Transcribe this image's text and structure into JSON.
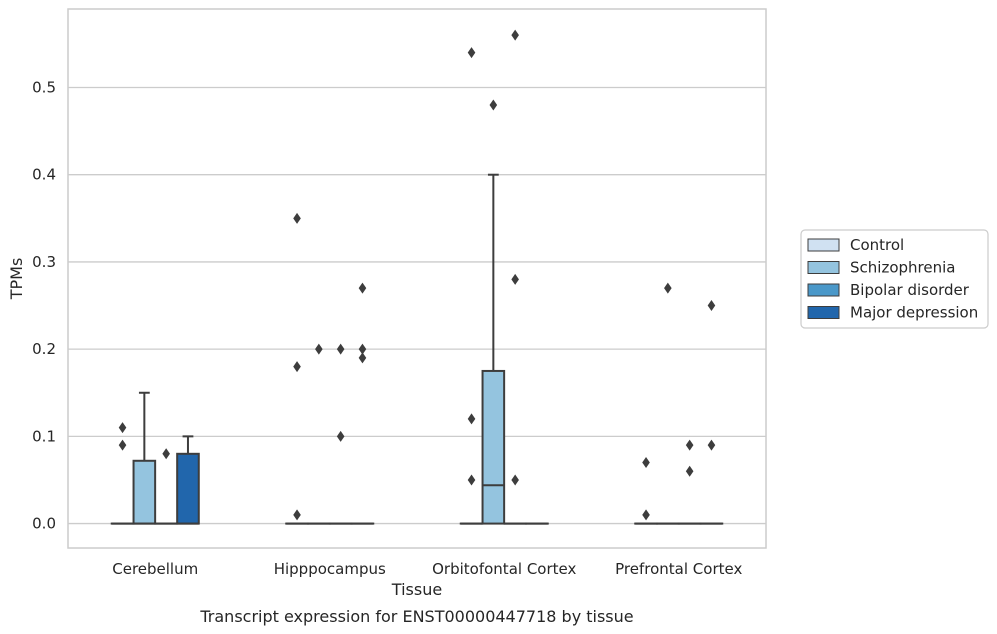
{
  "chart_data": {
    "type": "box",
    "title": "",
    "caption": "Transcript expression for ENST00000447718 by tissue",
    "xlabel": "Tissue",
    "ylabel": "TPMs",
    "ylim": [
      -0.028,
      0.59
    ],
    "yticks": [
      0.0,
      0.1,
      0.2,
      0.3,
      0.4,
      0.5
    ],
    "ytick_labels": [
      "0.0",
      "0.1",
      "0.2",
      "0.3",
      "0.4",
      "0.5"
    ],
    "grid": "horizontal",
    "legend_position": "right",
    "categories": [
      "Cerebellum",
      "Hipppocampus",
      "Orbitofontal Cortex",
      "Prefrontal Cortex"
    ],
    "series": [
      {
        "name": "Control",
        "color": "#d0e1f2",
        "boxes": [
          {
            "q1": 0,
            "median": 0,
            "q3": 0,
            "whisker_low": 0,
            "whisker_high": 0,
            "outliers": [
              0.09,
              0.11
            ]
          },
          {
            "q1": 0,
            "median": 0,
            "q3": 0,
            "whisker_low": 0,
            "whisker_high": 0,
            "outliers": [
              0.01,
              0.18,
              0.35
            ]
          },
          {
            "q1": 0,
            "median": 0,
            "q3": 0,
            "whisker_low": 0,
            "whisker_high": 0,
            "outliers": [
              0.05,
              0.12,
              0.54
            ]
          },
          {
            "q1": 0,
            "median": 0,
            "q3": 0,
            "whisker_low": 0,
            "whisker_high": 0,
            "outliers": [
              0.01,
              0.07
            ]
          }
        ]
      },
      {
        "name": "Schizophrenia",
        "color": "#94c4df",
        "boxes": [
          {
            "q1": 0,
            "median": 0,
            "q3": 0.072,
            "whisker_low": 0,
            "whisker_high": 0.15,
            "outliers": []
          },
          {
            "q1": 0,
            "median": 0,
            "q3": 0,
            "whisker_low": 0,
            "whisker_high": 0,
            "outliers": [
              0.2
            ]
          },
          {
            "q1": 0,
            "median": 0.044,
            "q3": 0.175,
            "whisker_low": 0,
            "whisker_high": 0.4,
            "outliers": [
              0.48
            ]
          },
          {
            "q1": 0,
            "median": 0,
            "q3": 0,
            "whisker_low": 0,
            "whisker_high": 0,
            "outliers": [
              0.27
            ]
          }
        ]
      },
      {
        "name": "Bipolar disorder",
        "color": "#4a98c9",
        "boxes": [
          {
            "q1": 0,
            "median": 0,
            "q3": 0,
            "whisker_low": 0,
            "whisker_high": 0,
            "outliers": [
              0.08
            ]
          },
          {
            "q1": 0,
            "median": 0,
            "q3": 0,
            "whisker_low": 0,
            "whisker_high": 0,
            "outliers": [
              0.1,
              0.2
            ]
          },
          {
            "q1": 0,
            "median": 0,
            "q3": 0,
            "whisker_low": 0,
            "whisker_high": 0,
            "outliers": [
              0.05,
              0.28,
              0.56
            ]
          },
          {
            "q1": 0,
            "median": 0,
            "q3": 0,
            "whisker_low": 0,
            "whisker_high": 0,
            "outliers": [
              0.06,
              0.09
            ]
          }
        ]
      },
      {
        "name": "Major depression",
        "color": "#2166ac",
        "boxes": [
          {
            "q1": 0,
            "median": 0,
            "q3": 0.08,
            "whisker_low": 0,
            "whisker_high": 0.1,
            "outliers": []
          },
          {
            "q1": 0,
            "median": 0,
            "q3": 0,
            "whisker_low": 0,
            "whisker_high": 0,
            "outliers": [
              0.19,
              0.2,
              0.27
            ]
          },
          {
            "q1": 0,
            "median": 0,
            "q3": 0,
            "whisker_low": 0,
            "whisker_high": 0,
            "outliers": []
          },
          {
            "q1": 0,
            "median": 0,
            "q3": 0,
            "whisker_low": 0,
            "whisker_high": 0,
            "outliers": [
              0.09,
              0.25
            ]
          }
        ]
      }
    ]
  }
}
